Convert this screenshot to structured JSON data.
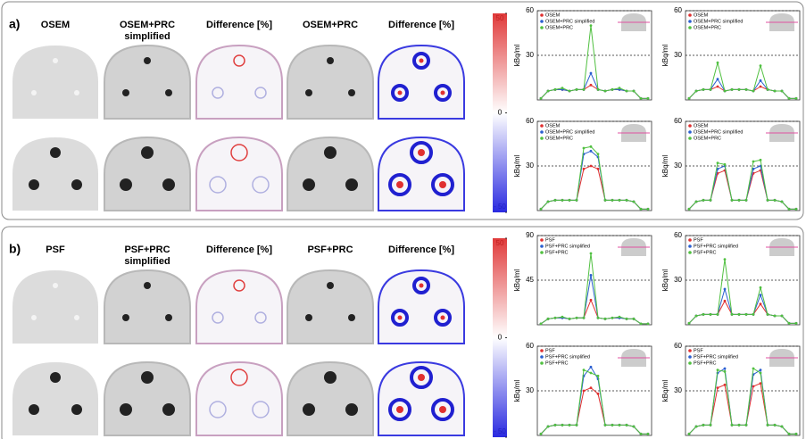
{
  "panels": [
    {
      "label": "a)",
      "columns": [
        "OSEM",
        "OSEM+PRC simplified",
        "Difference [%]",
        "OSEM+PRC",
        "Difference [%]"
      ],
      "colorbar": {
        "lim": [
          -50,
          50
        ],
        "ticks": [
          50,
          0,
          {
            "value": -50,
            "label": "- 50"
          }
        ]
      },
      "charts": [
        {
          "type": "line",
          "ylabel": "kBq/ml",
          "ylim": [
            0,
            60
          ],
          "yticks": [
            30,
            60
          ],
          "grid": true,
          "categories": [
            null,
            null,
            null,
            null,
            null,
            null,
            null,
            null,
            null,
            null,
            null,
            null,
            null,
            null,
            null,
            null
          ],
          "series": [
            {
              "name": "OSEM",
              "color": "#e03030",
              "values": [
                1,
                6,
                7,
                7,
                6,
                7,
                7,
                10,
                7,
                6,
                7,
                7,
                6,
                6,
                1,
                1
              ]
            },
            {
              "name": "OSEM+PRC simplified",
              "color": "#2a5fd0",
              "values": [
                1,
                6,
                7,
                7,
                6,
                7,
                7,
                18,
                7,
                6,
                7,
                7,
                6,
                6,
                1,
                1
              ]
            },
            {
              "name": "OSEM+PRC",
              "color": "#50c040",
              "values": [
                1,
                6,
                7,
                8,
                6,
                7,
                7,
                50,
                7,
                6,
                7,
                8,
                6,
                6,
                1,
                1
              ]
            }
          ]
        },
        {
          "type": "line",
          "ylabel": "kBq/ml",
          "ylim": [
            0,
            60
          ],
          "yticks": [
            30,
            60
          ],
          "grid": true,
          "categories": [
            null,
            null,
            null,
            null,
            null,
            null,
            null,
            null,
            null,
            null,
            null,
            null,
            null,
            null,
            null,
            null
          ],
          "series": [
            {
              "name": "OSEM",
              "color": "#e03030",
              "values": [
                1,
                6,
                7,
                7,
                9,
                6,
                7,
                7,
                7,
                6,
                9,
                7,
                6,
                6,
                1,
                1
              ]
            },
            {
              "name": "OSEM+PRC simplified",
              "color": "#2a5fd0",
              "values": [
                1,
                6,
                7,
                7,
                14,
                6,
                7,
                7,
                7,
                6,
                13,
                7,
                6,
                6,
                1,
                1
              ]
            },
            {
              "name": "OSEM+PRC",
              "color": "#50c040",
              "values": [
                1,
                6,
                7,
                7,
                25,
                6,
                7,
                7,
                7,
                6,
                23,
                7,
                6,
                6,
                1,
                1
              ]
            }
          ]
        },
        {
          "type": "line",
          "ylabel": "kBq/ml",
          "ylim": [
            0,
            60
          ],
          "yticks": [
            30,
            60
          ],
          "grid": true,
          "categories": [
            null,
            null,
            null,
            null,
            null,
            null,
            null,
            null,
            null,
            null,
            null,
            null,
            null,
            null,
            null,
            null
          ],
          "series": [
            {
              "name": "OSEM",
              "color": "#e03030",
              "values": [
                1,
                6,
                7,
                7,
                7,
                7,
                28,
                30,
                28,
                7,
                7,
                7,
                7,
                6,
                1,
                1
              ]
            },
            {
              "name": "OSEM+PRC simplified",
              "color": "#2a5fd0",
              "values": [
                1,
                6,
                7,
                7,
                7,
                7,
                38,
                40,
                36,
                7,
                7,
                7,
                7,
                6,
                1,
                1
              ]
            },
            {
              "name": "OSEM+PRC",
              "color": "#50c040",
              "values": [
                1,
                6,
                7,
                7,
                7,
                7,
                42,
                43,
                38,
                7,
                7,
                7,
                7,
                6,
                1,
                1
              ]
            }
          ]
        },
        {
          "type": "line",
          "ylabel": "kBq/ml",
          "ylim": [
            0,
            60
          ],
          "yticks": [
            30,
            60
          ],
          "grid": true,
          "categories": [
            null,
            null,
            null,
            null,
            null,
            null,
            null,
            null,
            null,
            null,
            null,
            null,
            null,
            null,
            null,
            null
          ],
          "series": [
            {
              "name": "OSEM",
              "color": "#e03030",
              "values": [
                1,
                6,
                7,
                7,
                25,
                27,
                7,
                7,
                7,
                25,
                27,
                7,
                7,
                6,
                1,
                1
              ]
            },
            {
              "name": "OSEM+PRC simplified",
              "color": "#2a5fd0",
              "values": [
                1,
                6,
                7,
                7,
                28,
                30,
                7,
                7,
                7,
                28,
                30,
                7,
                7,
                6,
                1,
                1
              ]
            },
            {
              "name": "OSEM+PRC",
              "color": "#50c040",
              "values": [
                1,
                6,
                7,
                7,
                32,
                31,
                7,
                7,
                7,
                33,
                34,
                7,
                7,
                6,
                1,
                1
              ]
            }
          ]
        }
      ]
    },
    {
      "label": "b)",
      "columns": [
        "PSF",
        "PSF+PRC simplified",
        "Difference [%]",
        "PSF+PRC",
        "Difference [%]"
      ],
      "colorbar": {
        "lim": [
          -50,
          50
        ],
        "ticks": [
          50,
          0,
          {
            "value": -50,
            "label": "- 50"
          }
        ]
      },
      "charts": [
        {
          "type": "line",
          "ylabel": "kBq/ml",
          "ylim": [
            0,
            90
          ],
          "yticks": [
            45,
            90
          ],
          "grid": true,
          "categories": [
            null,
            null,
            null,
            null,
            null,
            null,
            null,
            null,
            null,
            null,
            null,
            null,
            null,
            null,
            null,
            null
          ],
          "series": [
            {
              "name": "PSF",
              "color": "#e03030",
              "values": [
                1,
                6,
                7,
                7,
                6,
                7,
                7,
                25,
                7,
                6,
                7,
                7,
                6,
                6,
                1,
                1
              ]
            },
            {
              "name": "PSF+PRC simplified",
              "color": "#2a5fd0",
              "values": [
                1,
                6,
                7,
                7,
                6,
                7,
                7,
                50,
                7,
                6,
                7,
                7,
                6,
                6,
                1,
                1
              ]
            },
            {
              "name": "PSF+PRC",
              "color": "#50c040",
              "values": [
                1,
                6,
                7,
                8,
                6,
                7,
                7,
                72,
                7,
                6,
                7,
                8,
                6,
                6,
                1,
                1
              ]
            }
          ]
        },
        {
          "type": "line",
          "ylabel": "kBq/ml",
          "ylim": [
            0,
            60
          ],
          "yticks": [
            30,
            60
          ],
          "grid": true,
          "categories": [
            null,
            null,
            null,
            null,
            null,
            null,
            null,
            null,
            null,
            null,
            null,
            null,
            null,
            null,
            null,
            null
          ],
          "series": [
            {
              "name": "PSF",
              "color": "#e03030",
              "values": [
                1,
                6,
                7,
                7,
                7,
                16,
                7,
                7,
                7,
                7,
                14,
                7,
                6,
                6,
                1,
                1
              ]
            },
            {
              "name": "PSF+PRC simplified",
              "color": "#2a5fd0",
              "values": [
                1,
                6,
                7,
                7,
                7,
                24,
                7,
                7,
                7,
                7,
                20,
                7,
                6,
                6,
                1,
                1
              ]
            },
            {
              "name": "PSF+PRC",
              "color": "#50c040",
              "values": [
                1,
                6,
                7,
                7,
                7,
                44,
                7,
                7,
                7,
                7,
                25,
                7,
                6,
                6,
                1,
                1
              ]
            }
          ]
        },
        {
          "type": "line",
          "ylabel": "kBq/ml",
          "ylim": [
            0,
            60
          ],
          "yticks": [
            30,
            60
          ],
          "grid": true,
          "categories": [
            null,
            null,
            null,
            null,
            null,
            null,
            null,
            null,
            null,
            null,
            null,
            null,
            null,
            null,
            null,
            null
          ],
          "series": [
            {
              "name": "PSF",
              "color": "#e03030",
              "values": [
                1,
                6,
                7,
                7,
                7,
                7,
                30,
                32,
                28,
                7,
                7,
                7,
                7,
                6,
                1,
                1
              ]
            },
            {
              "name": "PSF+PRC simplified",
              "color": "#2a5fd0",
              "values": [
                1,
                6,
                7,
                7,
                7,
                7,
                40,
                46,
                38,
                7,
                7,
                7,
                7,
                6,
                1,
                1
              ]
            },
            {
              "name": "PSF+PRC",
              "color": "#50c040",
              "values": [
                1,
                6,
                7,
                7,
                7,
                7,
                44,
                42,
                40,
                7,
                7,
                7,
                7,
                6,
                1,
                1
              ]
            }
          ]
        },
        {
          "type": "line",
          "ylabel": "kBq/ml",
          "ylim": [
            0,
            60
          ],
          "yticks": [
            30,
            60
          ],
          "grid": true,
          "categories": [
            null,
            null,
            null,
            null,
            null,
            null,
            null,
            null,
            null,
            null,
            null,
            null,
            null,
            null,
            null,
            null
          ],
          "series": [
            {
              "name": "PSF",
              "color": "#e03030",
              "values": [
                1,
                6,
                7,
                7,
                32,
                34,
                7,
                7,
                7,
                33,
                35,
                7,
                7,
                6,
                1,
                1
              ]
            },
            {
              "name": "PSF+PRC simplified",
              "color": "#2a5fd0",
              "values": [
                1,
                6,
                7,
                7,
                42,
                45,
                7,
                7,
                7,
                41,
                44,
                7,
                7,
                6,
                1,
                1
              ]
            },
            {
              "name": "PSF+PRC",
              "color": "#50c040",
              "values": [
                1,
                6,
                7,
                7,
                44,
                43,
                7,
                7,
                7,
                45,
                42,
                7,
                7,
                6,
                1,
                1
              ]
            }
          ]
        }
      ]
    }
  ]
}
